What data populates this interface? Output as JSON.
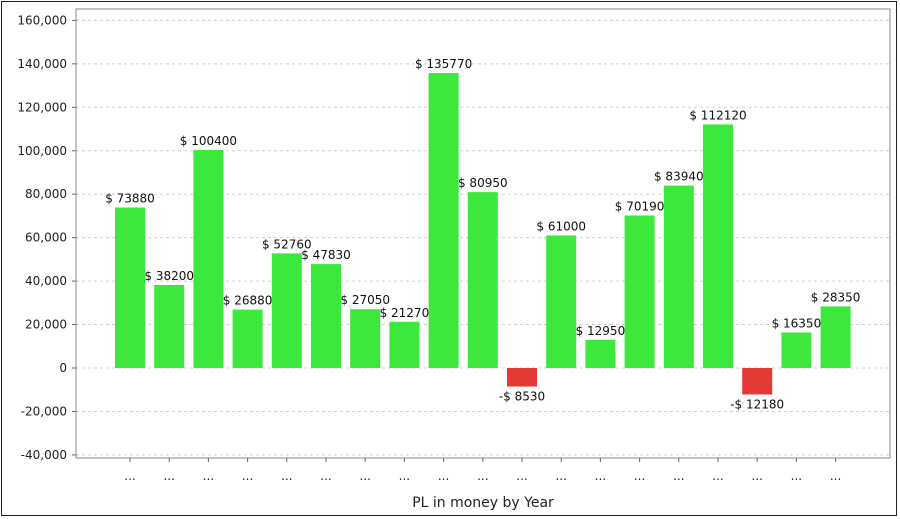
{
  "chart_data": {
    "type": "bar",
    "title": "",
    "xlabel": "PL in money by Year",
    "ylabel": "",
    "ylim": [
      -40000,
      160000
    ],
    "yticks": [
      -40000,
      -20000,
      0,
      20000,
      40000,
      60000,
      80000,
      100000,
      120000,
      140000,
      160000
    ],
    "ytick_labels": [
      "-40,000",
      "-20,000",
      "0",
      "20,000",
      "40,000",
      "60,000",
      "80,000",
      "100,000",
      "120,000",
      "140,000",
      "160,000"
    ],
    "grid": "horizontal-dashed",
    "categories": [
      "...",
      "...",
      "...",
      "...",
      "...",
      "...",
      "...",
      "...",
      "...",
      "...",
      "...",
      "...",
      "...",
      "...",
      "...",
      "...",
      "...",
      "...",
      "..."
    ],
    "values": [
      73880,
      38200,
      100400,
      26880,
      52760,
      47830,
      27050,
      21270,
      135770,
      80950,
      -8530,
      61000,
      12950,
      70190,
      83940,
      112120,
      -12180,
      16350,
      28350
    ],
    "value_labels": [
      "$ 73880",
      "$ 38200",
      "$ 100400",
      "$ 26880",
      "$ 52760",
      "$ 47830",
      "$ 27050",
      "$ 21270",
      "$ 135770",
      "$ 80950",
      "-$ 8530",
      "$ 61000",
      "$ 12950",
      "$ 70190",
      "$ 83940",
      "$ 112120",
      "-$ 12180",
      "$ 16350",
      "$ 28350"
    ],
    "colors": {
      "positive": "#3be83b",
      "negative": "#e53935",
      "plot_border": "#8a8a8a",
      "grid": "#d0d0d0"
    }
  }
}
